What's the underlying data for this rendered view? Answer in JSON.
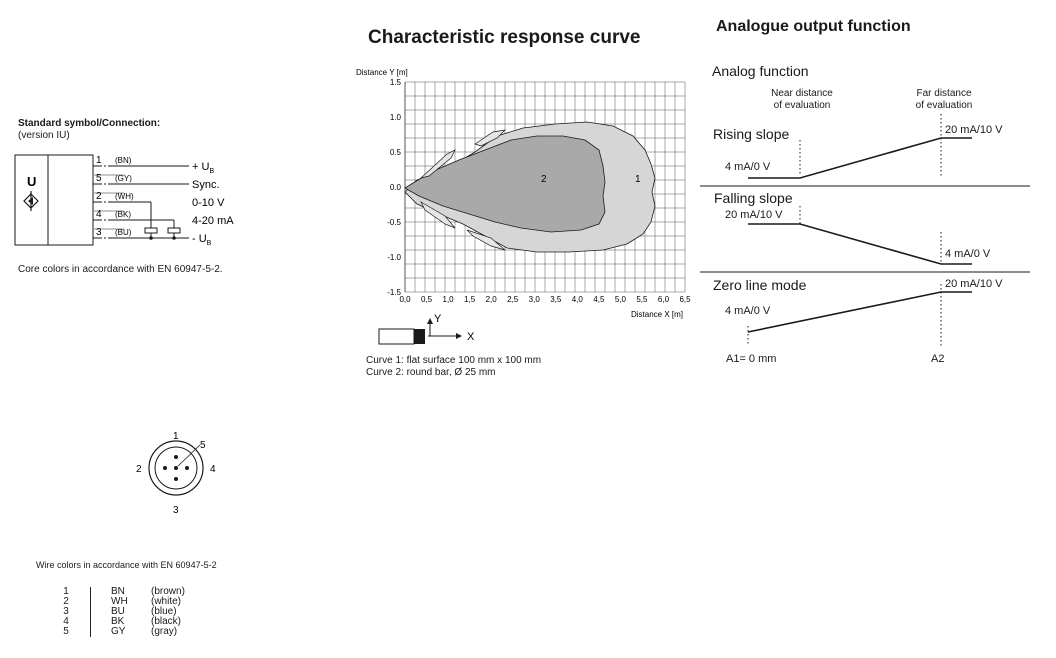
{
  "connection": {
    "title": "Standard symbol/Connection:",
    "version": "(version IU)",
    "symbol_letter": "U",
    "pins": [
      {
        "num": "1",
        "color": "(BN)",
        "label": "+ U",
        "sub": "B"
      },
      {
        "num": "5",
        "color": "(GY)",
        "label": "Sync.",
        "sub": ""
      },
      {
        "num": "2",
        "color": "(WH)",
        "label": "0-10 V",
        "sub": ""
      },
      {
        "num": "4",
        "color": "(BK)",
        "label": "4-20 mA",
        "sub": ""
      },
      {
        "num": "3",
        "color": "(BU)",
        "label": "- U",
        "sub": "B"
      }
    ],
    "core_note": "Core colors in accordance with EN 60947-5-2."
  },
  "connector": {
    "pin_labels": [
      "1",
      "5",
      "2",
      "4",
      "3"
    ]
  },
  "wire_colors": {
    "title": "Wire colors in accordance with EN 60947-5-2",
    "rows": [
      {
        "num": "1",
        "code": "BN",
        "name": "(brown)"
      },
      {
        "num": "2",
        "code": "WH",
        "name": "(white)"
      },
      {
        "num": "3",
        "code": "BU",
        "name": "(blue)"
      },
      {
        "num": "4",
        "code": "BK",
        "name": "(black)"
      },
      {
        "num": "5",
        "code": "GY",
        "name": "(gray)"
      }
    ]
  },
  "response_curve": {
    "title": "Characteristic response curve",
    "y_axis_label": "Distance Y [m]",
    "x_axis_label": "Distance X [m]",
    "y_ticks": [
      "1.5",
      "1.0",
      "0.5",
      "0.0",
      "-0.5",
      "-1.0",
      "-1.5"
    ],
    "x_ticks": [
      "0,0",
      "0,5",
      "1,0",
      "1,5",
      "2,0",
      "2,5",
      "3,0",
      "3,5",
      "4,0",
      "4,5",
      "5,0",
      "5,5",
      "6,0",
      "6,5"
    ],
    "curve_labels": [
      "1",
      "2"
    ],
    "axis_y_letter": "Y",
    "axis_x_letter": "X",
    "legend": [
      "Curve 1: flat surface 100 mm x 100 mm",
      "Curve 2: round bar, Ø 25 mm"
    ]
  },
  "analog": {
    "title": "Analogue output function",
    "subtitle": "Analog function",
    "near_label": [
      "Near distance",
      "of evaluation"
    ],
    "far_label": [
      "Far distance",
      "of evaluation"
    ],
    "rising": {
      "title": "Rising slope",
      "low": "4 mA/0 V",
      "high": "20 mA/10 V"
    },
    "falling": {
      "title": "Falling slope",
      "high": "20 mA/10 V",
      "low": "4 mA/0 V"
    },
    "zero": {
      "title": "Zero line mode",
      "low": "4 mA/0 V",
      "high": "20 mA/10 V"
    },
    "a1": "A1= 0 mm",
    "a2": "A2"
  },
  "colors": {
    "curve1_fill": "#d6d6d6",
    "curve2_fill": "#a9a9a9",
    "line": "#1a1a1a"
  }
}
